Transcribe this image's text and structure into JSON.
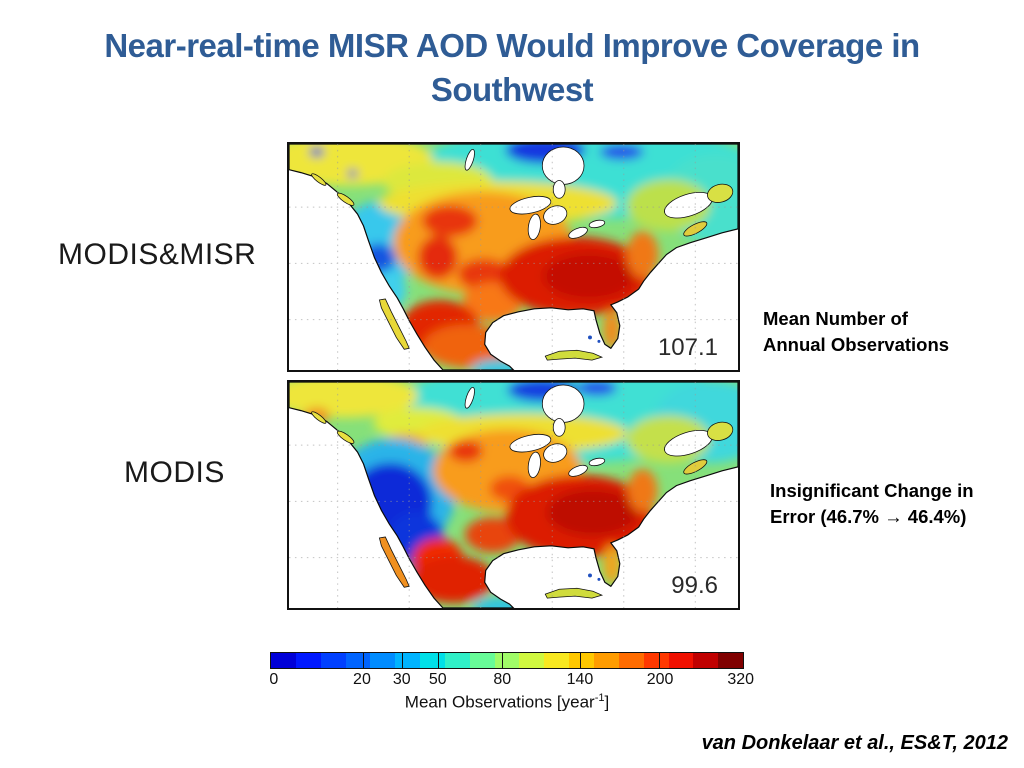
{
  "slide": {
    "title_line1": "Near-real-time MISR AOD Would Improve Coverage in",
    "title_line2": "Southwest"
  },
  "panels": [
    {
      "label": "MODIS&MISR",
      "mean_value": "107.1"
    },
    {
      "label": "MODIS",
      "mean_value": "99.6"
    }
  ],
  "annotations": {
    "mean_obs_line1": "Mean Number of",
    "mean_obs_line2": "Annual Observations",
    "error_line1": "Insignificant Change in",
    "error_line2": "Error (46.7% → 46.4%)"
  },
  "colorbar": {
    "ticks": [
      "0",
      "20",
      "30",
      "50",
      "80",
      "140",
      "200",
      "320"
    ],
    "tick_positions_pct": [
      0.8,
      19.4,
      27.8,
      35.4,
      49.0,
      65.4,
      82.3,
      99.3
    ],
    "label_prefix": "Mean Observations [year",
    "label_sup": "-1",
    "label_suffix": "]",
    "colors": [
      "#0000D8",
      "#0018FF",
      "#0040FF",
      "#0064FF",
      "#008CFF",
      "#00B4FF",
      "#00E0E8",
      "#30F0C8",
      "#68FC98",
      "#A0FC68",
      "#D0F840",
      "#F8E820",
      "#FFC800",
      "#FF9C00",
      "#FF6C00",
      "#FF3800",
      "#F01000",
      "#C00000",
      "#800000"
    ]
  },
  "citation": "van Donkelaar et al., ES&T, 2012",
  "theme": {
    "title_color": "#2F5C95",
    "text_color": "#000000"
  },
  "chart_data": [
    {
      "type": "heatmap",
      "title": "MODIS&MISR",
      "region": "North America",
      "quantity": "Mean number of annual AOD observations",
      "overall_mean": 107.1,
      "scale_ticks": [
        0,
        20,
        30,
        50,
        80,
        140,
        200,
        320
      ],
      "scale_label": "Mean Observations [year^-1]",
      "colormap": "jet-like discrete (blue=low, dark red=high)",
      "notes": "High coverage (red) over southeast/central US; moderate over southwest US"
    },
    {
      "type": "heatmap",
      "title": "MODIS",
      "region": "North America",
      "quantity": "Mean number of annual AOD observations",
      "overall_mean": 99.6,
      "scale_ticks": [
        0,
        20,
        30,
        50,
        80,
        140,
        200,
        320
      ],
      "scale_label": "Mean Observations [year^-1]",
      "colormap": "jet-like discrete (blue=low, dark red=high)",
      "notes": "Large low-coverage (dark blue) gap over the US southwest",
      "error_change": {
        "from_pct": 46.7,
        "to_pct": 46.4
      }
    }
  ]
}
